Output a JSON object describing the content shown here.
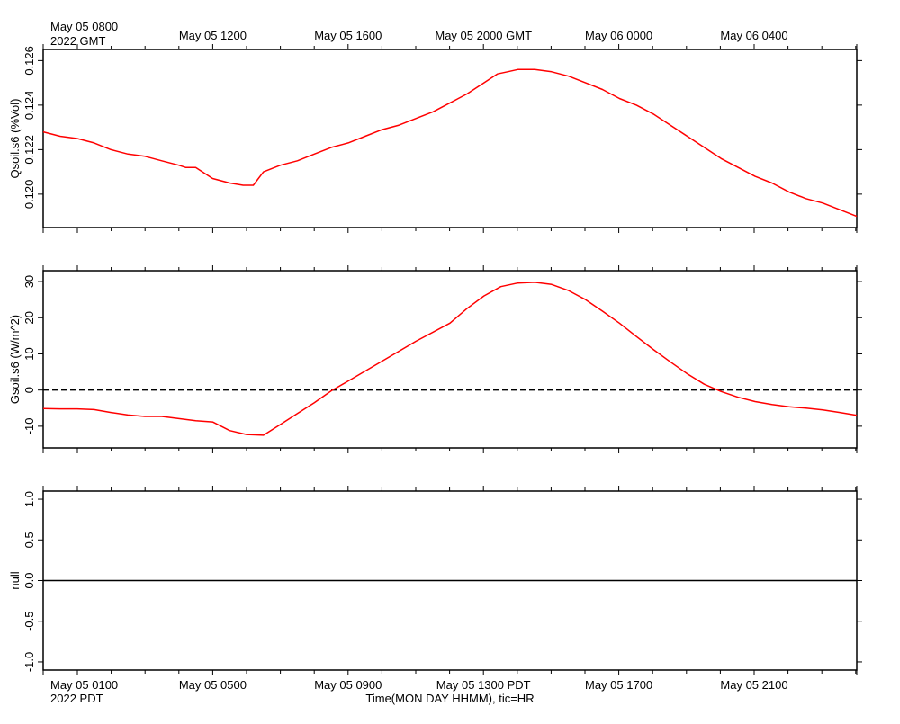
{
  "header": {
    "start_line1": "May 05 0800",
    "start_line2": "2022 GMT",
    "gmt_ticks": [
      "May 05 1200",
      "May 05 1600",
      "May 05 2000 GMT",
      "May 06 0000",
      "May 06 0400"
    ]
  },
  "footer": {
    "start_line1": "May 05 0100",
    "start_line2": "2022 PDT",
    "pdt_ticks": [
      "May 05 0500",
      "May 05 0900",
      "May 05 1300 PDT",
      "May 05 1700",
      "May 05 2100"
    ],
    "xlabel": "Time(MON DAY HHMM), tic=HR"
  },
  "colors": {
    "series": "#ff0000",
    "axis": "#000000",
    "zero_line": "#000000"
  },
  "chart_data": [
    {
      "type": "line",
      "ylabel": "Qsoil.s6 (%Vol)",
      "ylim": [
        0.1185,
        0.1265
      ],
      "yticks": [
        "0.120",
        "0.122",
        "0.124",
        "0.126"
      ],
      "ytick_values": [
        0.12,
        0.122,
        0.124,
        0.126
      ],
      "xlim_hours": [
        0,
        24
      ],
      "series": [
        {
          "x": [
            0,
            0.5,
            1,
            1.5,
            2,
            2.5,
            3,
            3.5,
            4,
            4.2,
            4.5,
            5,
            5.5,
            5.9,
            6.2,
            6.5,
            7,
            7.5,
            8,
            8.5,
            9,
            9.5,
            10,
            10.5,
            11,
            11.5,
            12,
            12.5,
            13,
            13.4,
            13.7,
            14,
            14.5,
            15,
            15.5,
            16,
            16.5,
            17,
            17.5,
            18,
            18.5,
            19,
            19.5,
            20,
            20.5,
            21,
            21.5,
            22,
            22.5,
            23,
            23.5,
            24
          ],
          "y": [
            0.1228,
            0.1226,
            0.1225,
            0.1223,
            0.122,
            0.1218,
            0.1217,
            0.1215,
            0.1213,
            0.1212,
            0.1212,
            0.1207,
            0.1205,
            0.1204,
            0.1204,
            0.121,
            0.1213,
            0.1215,
            0.1218,
            0.1221,
            0.1223,
            0.1226,
            0.1229,
            0.1231,
            0.1234,
            0.1237,
            0.1241,
            0.1245,
            0.125,
            0.1254,
            0.1255,
            0.1256,
            0.1256,
            0.1255,
            0.1253,
            0.125,
            0.1247,
            0.1243,
            0.124,
            0.1236,
            0.1231,
            0.1226,
            0.1221,
            0.1216,
            0.1212,
            0.1208,
            0.1205,
            0.1201,
            0.1198,
            0.1196,
            0.1193,
            0.119
          ]
        }
      ]
    },
    {
      "type": "line",
      "ylabel": "Gsoil.s6 (W/m^2)",
      "ylim": [
        -16,
        33
      ],
      "yticks": [
        "-10",
        "0",
        "10",
        "20",
        "30"
      ],
      "ytick_values": [
        -10,
        0,
        10,
        20,
        30
      ],
      "xlim_hours": [
        0,
        24
      ],
      "zero_line": 0,
      "series": [
        {
          "x": [
            0,
            0.5,
            1,
            1.5,
            2,
            2.5,
            3,
            3.5,
            4,
            4.5,
            5,
            5.5,
            6,
            6.5,
            7,
            7.5,
            8,
            8.5,
            9,
            10,
            11,
            12,
            12.5,
            13,
            13.5,
            14,
            14.5,
            15,
            15.5,
            16,
            16.5,
            17,
            17.5,
            18,
            18.5,
            19,
            19.5,
            20,
            20.5,
            21,
            21.5,
            22,
            22.5,
            23,
            23.5,
            24
          ],
          "y": [
            -5.1,
            -5.2,
            -5.2,
            -5.4,
            -6.2,
            -6.9,
            -7.3,
            -7.3,
            -7.9,
            -8.5,
            -8.8,
            -11.2,
            -12.3,
            -12.5,
            -9.5,
            -6.5,
            -3.5,
            -0.2,
            2.5,
            8.0,
            13.5,
            18.5,
            22.5,
            26.0,
            28.6,
            29.6,
            29.8,
            29.2,
            27.5,
            25.0,
            21.8,
            18.5,
            14.8,
            11.2,
            7.8,
            4.5,
            1.6,
            -0.4,
            -2.0,
            -3.2,
            -4.0,
            -4.6,
            -5.0,
            -5.5,
            -6.2,
            -7.0
          ]
        }
      ]
    },
    {
      "type": "line",
      "ylabel": "null",
      "ylim": [
        -1.1,
        1.1
      ],
      "yticks": [
        "-1.0",
        "-0.5",
        "0.0",
        "0.5",
        "1.0"
      ],
      "ytick_values": [
        -1.0,
        -0.5,
        0.0,
        0.5,
        1.0
      ],
      "xlim_hours": [
        0,
        24
      ],
      "series": [
        {
          "x": [
            0,
            24
          ],
          "y": [
            0,
            0
          ]
        }
      ]
    }
  ]
}
